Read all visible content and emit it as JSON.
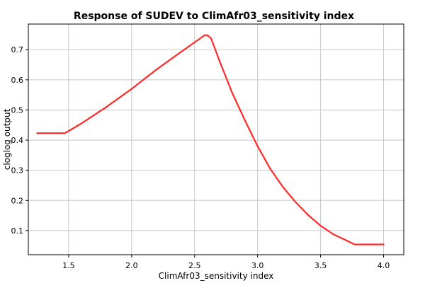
{
  "chart_data": {
    "type": "line",
    "title": "Response of SUDEV to ClimAfr03_sensitivity index",
    "xlabel": "ClimAfr03_sensitivity index",
    "ylabel": "cloglog output",
    "xlim": [
      1.18,
      4.16
    ],
    "ylim": [
      0.02,
      0.785
    ],
    "x_ticks": [
      1.5,
      2.0,
      2.5,
      3.0,
      3.5,
      4.0
    ],
    "x_tick_labels": [
      "1.5",
      "2.0",
      "2.5",
      "3.0",
      "3.5",
      "4.0"
    ],
    "y_ticks": [
      0.1,
      0.2,
      0.3,
      0.4,
      0.5,
      0.6,
      0.7
    ],
    "y_tick_labels": [
      "0.1",
      "0.2",
      "0.3",
      "0.4",
      "0.5",
      "0.6",
      "0.7"
    ],
    "grid": true,
    "line_color": "#ff2a2a",
    "grid_color": "#c8c8c8",
    "series": [
      {
        "x": [
          1.25,
          1.47,
          1.6,
          1.8,
          2.0,
          2.2,
          2.4,
          2.58,
          2.6,
          2.63,
          2.7,
          2.8,
          2.9,
          3.0,
          3.1,
          3.2,
          3.3,
          3.4,
          3.5,
          3.6,
          3.7,
          3.77,
          4.0
        ],
        "y": [
          0.423,
          0.423,
          0.455,
          0.51,
          0.57,
          0.635,
          0.695,
          0.748,
          0.748,
          0.738,
          0.66,
          0.555,
          0.465,
          0.38,
          0.305,
          0.245,
          0.195,
          0.152,
          0.116,
          0.088,
          0.068,
          0.054,
          0.054
        ]
      }
    ]
  }
}
